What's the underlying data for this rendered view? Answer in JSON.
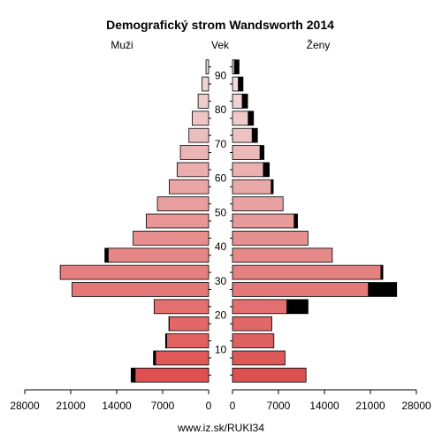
{
  "chart_data": {
    "type": "bar",
    "title": "Demografický strom Wandsworth 2014",
    "left_label": "Muži",
    "center_label": "Vek",
    "right_label": "Ženy",
    "source": "www.iz.sk/RUKI34",
    "xlim": [
      0,
      28000
    ],
    "x_ticks": [
      "28000",
      "21000",
      "14000",
      "7000",
      "0",
      "7000",
      "14000",
      "21000",
      "28000"
    ],
    "age_ticks": [
      "10",
      "20",
      "30",
      "40",
      "50",
      "60",
      "70",
      "80",
      "90"
    ],
    "age_groups": [
      "0-4",
      "5-9",
      "10-14",
      "15-19",
      "20-24",
      "25-29",
      "30-34",
      "35-39",
      "40-44",
      "45-49",
      "50-54",
      "55-59",
      "60-64",
      "65-69",
      "70-74",
      "75-79",
      "80-84",
      "85-89",
      "90+"
    ],
    "series": [
      {
        "name": "Muži",
        "values": [
          11200,
          8100,
          6400,
          6000,
          8300,
          20800,
          22600,
          15300,
          11500,
          9500,
          7800,
          6000,
          4800,
          4300,
          3000,
          2500,
          1600,
          1000,
          400
        ],
        "excess": [
          600,
          300,
          150,
          50,
          0,
          0,
          0,
          500,
          0,
          0,
          0,
          0,
          0,
          0,
          0,
          0,
          0,
          0,
          0
        ]
      },
      {
        "name": "Ženy",
        "values": [
          11200,
          8000,
          6300,
          6000,
          8300,
          20700,
          22600,
          15200,
          11500,
          9400,
          7700,
          5900,
          4700,
          4200,
          3000,
          2400,
          1500,
          900,
          300
        ],
        "excess": [
          0,
          0,
          0,
          0,
          3200,
          4300,
          300,
          0,
          0,
          500,
          0,
          300,
          900,
          600,
          800,
          800,
          800,
          700,
          700
        ]
      }
    ],
    "colors": {
      "male_young": "#e05050",
      "male_old": "#f0dcdc",
      "female_young": "#dd5050",
      "female_old": "#f2e2e2",
      "excess": "#000000"
    }
  }
}
